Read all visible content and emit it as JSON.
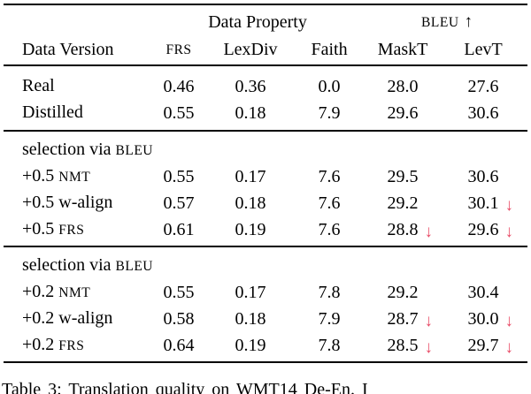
{
  "colors": {
    "background": "#ffffff",
    "text": "#000000",
    "down_arrow": "#e84c67"
  },
  "icons": {
    "up_arrow": "↑",
    "down_arrow": "↓"
  },
  "table": {
    "group_header": {
      "data_property": "Data Property",
      "bleu": "BLEU"
    },
    "columns": {
      "c0": "Data Version",
      "c1": "FRS",
      "c2": "LexDiv",
      "c3": "Faith",
      "c4": "MaskT",
      "c5": "LevT"
    },
    "sections": [
      {
        "rows": [
          {
            "label": "Real",
            "label_sc": "",
            "frs": "0.46",
            "lexdiv": "0.36",
            "faith": "0.0",
            "maskt": {
              "v": "28.0",
              "down": false
            },
            "levt": {
              "v": "27.6",
              "down": false
            }
          },
          {
            "label": "Distilled",
            "label_sc": "",
            "frs": "0.55",
            "lexdiv": "0.18",
            "faith": "7.9",
            "maskt": {
              "v": "29.6",
              "down": false
            },
            "levt": {
              "v": "30.6",
              "down": false
            }
          }
        ]
      },
      {
        "header": "selection via ",
        "header_sc": "BLEU",
        "rows": [
          {
            "label": "+0.5 ",
            "label_sc": "NMT",
            "frs": "0.55",
            "lexdiv": "0.17",
            "faith": "7.6",
            "maskt": {
              "v": "29.5",
              "down": false
            },
            "levt": {
              "v": "30.6",
              "down": false
            }
          },
          {
            "label": "+0.5 w-align",
            "label_sc": "",
            "frs": "0.57",
            "lexdiv": "0.18",
            "faith": "7.6",
            "maskt": {
              "v": "29.2",
              "down": false
            },
            "levt": {
              "v": "30.1",
              "down": true
            }
          },
          {
            "label": "+0.5 ",
            "label_sc": "FRS",
            "frs": "0.61",
            "lexdiv": "0.19",
            "faith": "7.6",
            "maskt": {
              "v": "28.8",
              "down": true
            },
            "levt": {
              "v": "29.6",
              "down": true
            }
          }
        ]
      },
      {
        "header": "selection via ",
        "header_sc": "BLEU",
        "rows": [
          {
            "label": "+0.2 ",
            "label_sc": "NMT",
            "frs": "0.55",
            "lexdiv": "0.17",
            "faith": "7.8",
            "maskt": {
              "v": "29.2",
              "down": false
            },
            "levt": {
              "v": "30.4",
              "down": false
            }
          },
          {
            "label": "+0.2 w-align",
            "label_sc": "",
            "frs": "0.58",
            "lexdiv": "0.18",
            "faith": "7.9",
            "maskt": {
              "v": "28.7",
              "down": true
            },
            "levt": {
              "v": "30.0",
              "down": true
            }
          },
          {
            "label": "+0.2 ",
            "label_sc": "FRS",
            "frs": "0.64",
            "lexdiv": "0.19",
            "faith": "7.8",
            "maskt": {
              "v": "28.5",
              "down": true
            },
            "levt": {
              "v": "29.7",
              "down": true
            }
          }
        ]
      }
    ]
  },
  "caption": "Table 3: Translation quality on WMT14 De-En. I"
}
